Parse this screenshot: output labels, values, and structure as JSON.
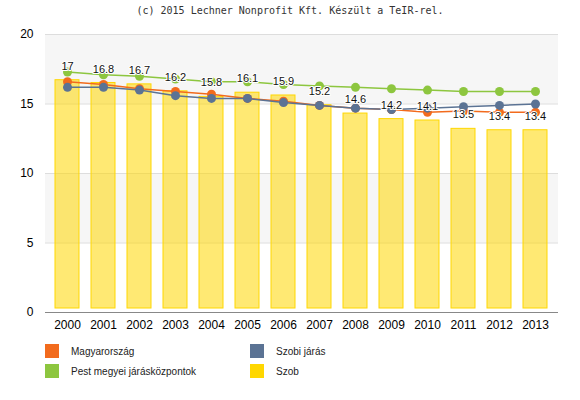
{
  "chart_data": {
    "type": "bar",
    "title": "(c) 2015 Lechner Nonprofit Kft. Készült a TeIR-rel.",
    "categories": [
      "2000",
      "2001",
      "2002",
      "2003",
      "2004",
      "2005",
      "2006",
      "2007",
      "2008",
      "2009",
      "2010",
      "2011",
      "2012",
      "2013"
    ],
    "series": [
      {
        "name": "Magyarország",
        "type": "line",
        "marker": "circle",
        "color": "#f26b1d",
        "values": [
          16.6,
          16.4,
          16.1,
          15.9,
          15.7,
          15.4,
          15.2,
          14.9,
          14.7,
          14.6,
          14.4,
          14.5,
          14.4,
          14.4
        ]
      },
      {
        "name": "Szobi járás",
        "type": "line",
        "marker": "circle",
        "color": "#5b7394",
        "values": [
          16.2,
          16.2,
          16.0,
          15.6,
          15.4,
          15.4,
          15.1,
          14.9,
          14.7,
          14.6,
          14.7,
          14.8,
          14.9,
          15.0
        ]
      },
      {
        "name": "Pest megyei járásközpontok",
        "type": "line",
        "marker": "circle",
        "color": "#8dc63f",
        "values": [
          17.3,
          17.1,
          17.0,
          16.8,
          16.6,
          16.6,
          16.4,
          16.3,
          16.2,
          16.1,
          16.0,
          15.9,
          15.9,
          15.9
        ]
      },
      {
        "name": "Szob",
        "type": "bar",
        "color": "#ffd700",
        "data_labels": true,
        "values": [
          17,
          16.8,
          16.7,
          16.2,
          15.8,
          16.1,
          15.9,
          15.2,
          14.6,
          14.2,
          14.1,
          13.5,
          13.4,
          13.4
        ]
      }
    ],
    "ylim": [
      0,
      20
    ],
    "yticks": [
      0,
      5,
      10,
      15,
      20
    ],
    "grid": true,
    "legend": "bottom"
  }
}
